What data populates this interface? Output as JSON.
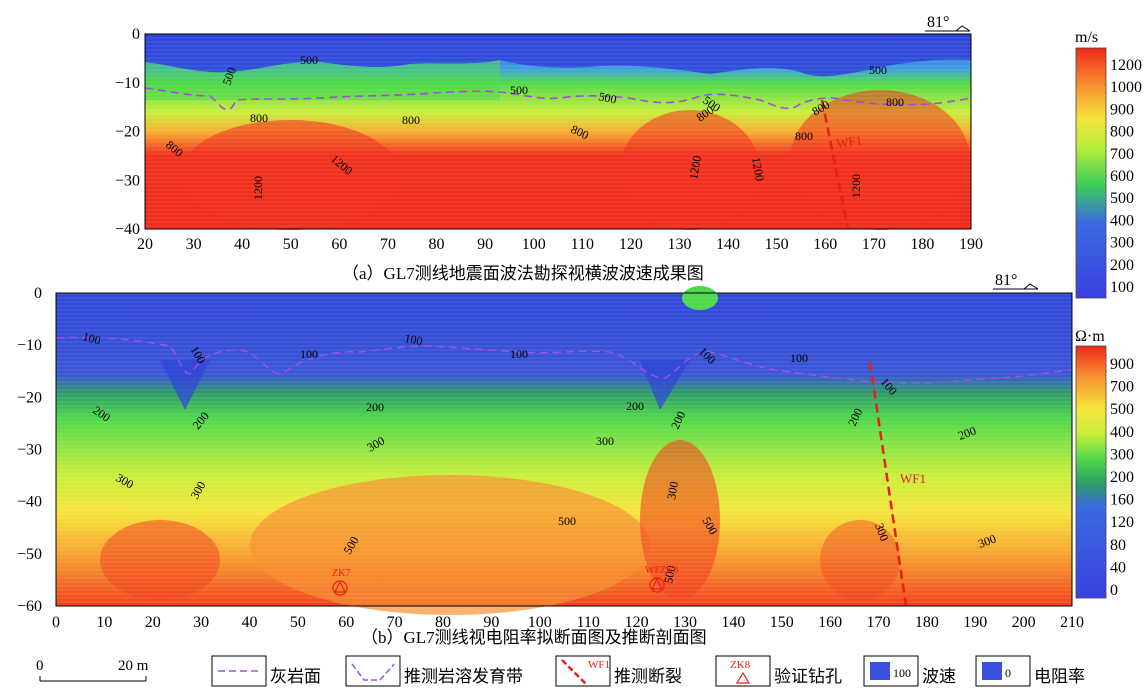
{
  "panel_a": {
    "caption": "（a）GL7测线地震面波法勘探视横波波速成果图",
    "dip": "81°",
    "unit": "m/s",
    "x_ticks": [
      "20",
      "30",
      "40",
      "50",
      "60",
      "70",
      "80",
      "90",
      "100",
      "110",
      "120",
      "130",
      "140",
      "150",
      "160",
      "170",
      "180",
      "190"
    ],
    "y_ticks": [
      "0",
      "−10",
      "−20",
      "−30",
      "−40"
    ],
    "colorbar": [
      "1200",
      "1000",
      "900",
      "800",
      "700",
      "600",
      "500",
      "400",
      "300",
      "200",
      "100"
    ],
    "contour_labels": [
      "500",
      "500",
      "500",
      "500",
      "500",
      "500",
      "800",
      "800",
      "800",
      "800",
      "800",
      "800",
      "800",
      "800",
      "1200",
      "1200",
      "1200",
      "1200",
      "1200"
    ],
    "fault": "WF1",
    "colors": {
      "low": "#2f45d8",
      "mid": "#4ed84a",
      "high": "#f0321e",
      "yellow": "#f5e63c"
    }
  },
  "panel_b": {
    "caption": "（b）GL7测线视电阻率拟断面图及推断剖面图",
    "dip": "81°",
    "unit": "Ω·m",
    "x_ticks": [
      "0",
      "10",
      "20",
      "30",
      "40",
      "50",
      "60",
      "70",
      "80",
      "90",
      "100",
      "110",
      "120",
      "130",
      "140",
      "150",
      "160",
      "170",
      "180",
      "190",
      "200",
      "210"
    ],
    "y_ticks": [
      "0",
      "−10",
      "−20",
      "−30",
      "−40",
      "−50",
      "−60"
    ],
    "colorbar": [
      "900",
      "700",
      "500",
      "400",
      "300",
      "200",
      "160",
      "120",
      "80",
      "40",
      "0"
    ],
    "contour_labels": [
      "100",
      "100",
      "100",
      "100",
      "100",
      "100",
      "100",
      "100",
      "200",
      "200",
      "200",
      "200",
      "200",
      "200",
      "200",
      "300",
      "300",
      "300",
      "300",
      "300",
      "300",
      "300",
      "500",
      "500",
      "500",
      "500"
    ],
    "fault": "WF1",
    "boreholes": [
      "ZK7",
      "WFZK8"
    ]
  },
  "legend": {
    "scale_start": "0",
    "scale_end": "20 m",
    "items": [
      {
        "key": "limestone",
        "label": "灰岩面"
      },
      {
        "key": "karst",
        "label": "推测岩溶发育带"
      },
      {
        "key": "fault",
        "label": "推测断裂",
        "sample": "WF1"
      },
      {
        "key": "borehole",
        "label": "验证钻孔",
        "sample": "ZK8"
      },
      {
        "key": "velocity",
        "label": "波速",
        "sample": "100"
      },
      {
        "key": "resistivity",
        "label": "电阻率",
        "sample": "0"
      }
    ]
  }
}
